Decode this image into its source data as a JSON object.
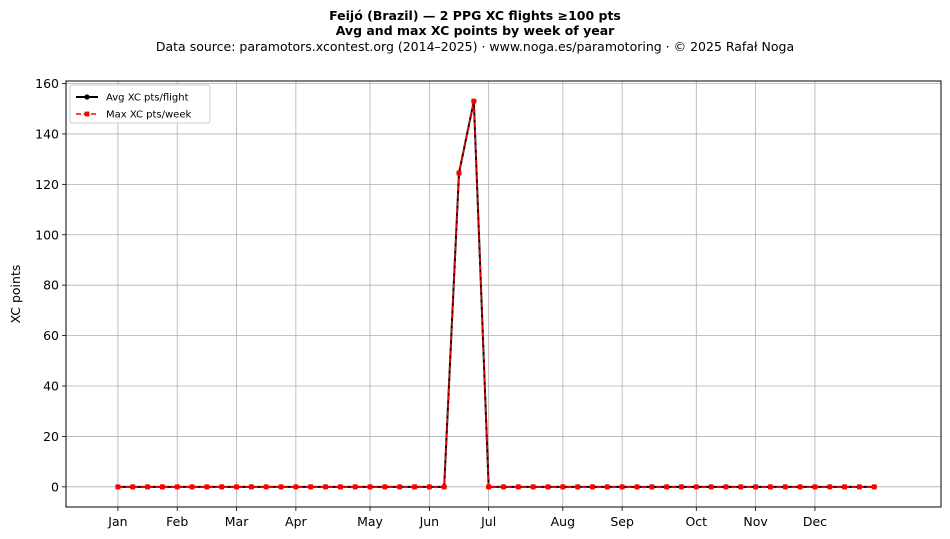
{
  "header": {
    "title_line1": "Feijó (Brazil)  —  2 PPG XC flights ≥100 pts",
    "title_line2": "Avg and max XC points by week of year",
    "subtitle": "Data source: paramotors.xcontest.org (2014–2025)  ·  www.noga.es/paramotoring  ·  © 2025 Rafał Noga"
  },
  "chart_data": {
    "type": "line",
    "title": "Avg and max XC points by week of year",
    "xlabel": "",
    "ylabel": "XC points",
    "xlim": [
      -2.5,
      56.5
    ],
    "ylim": [
      -8,
      161
    ],
    "yticks": [
      0,
      20,
      40,
      60,
      80,
      100,
      120,
      140,
      160
    ],
    "x_ticks": [
      {
        "week": 1,
        "label": "Jan"
      },
      {
        "week": 5,
        "label": "Feb"
      },
      {
        "week": 9,
        "label": "Mar"
      },
      {
        "week": 13,
        "label": "Apr"
      },
      {
        "week": 18,
        "label": "May"
      },
      {
        "week": 22,
        "label": "Jun"
      },
      {
        "week": 26,
        "label": "Jul"
      },
      {
        "week": 31,
        "label": "Aug"
      },
      {
        "week": 35,
        "label": "Sep"
      },
      {
        "week": 40,
        "label": "Oct"
      },
      {
        "week": 44,
        "label": "Nov"
      },
      {
        "week": 48,
        "label": "Dec"
      }
    ],
    "grid": true,
    "legend_position": "top-left",
    "x": [
      1,
      2,
      3,
      4,
      5,
      6,
      7,
      8,
      9,
      10,
      11,
      12,
      13,
      14,
      15,
      16,
      17,
      18,
      19,
      20,
      21,
      22,
      23,
      24,
      25,
      26,
      27,
      28,
      29,
      30,
      31,
      32,
      33,
      34,
      35,
      36,
      37,
      38,
      39,
      40,
      41,
      42,
      43,
      44,
      45,
      46,
      47,
      48,
      49,
      50,
      51,
      52
    ],
    "series": [
      {
        "name": "Avg XC pts/flight",
        "color": "#000000",
        "marker": "circle",
        "style": "solid",
        "values": [
          0,
          0,
          0,
          0,
          0,
          0,
          0,
          0,
          0,
          0,
          0,
          0,
          0,
          0,
          0,
          0,
          0,
          0,
          0,
          0,
          0,
          0,
          0,
          124.5,
          153,
          0,
          0,
          0,
          0,
          0,
          0,
          0,
          0,
          0,
          0,
          0,
          0,
          0,
          0,
          0,
          0,
          0,
          0,
          0,
          0,
          0,
          0,
          0,
          0,
          0,
          0,
          0
        ]
      },
      {
        "name": "Max XC pts/week",
        "color": "#ff0000",
        "marker": "square",
        "style": "dashed",
        "values": [
          0,
          0,
          0,
          0,
          0,
          0,
          0,
          0,
          0,
          0,
          0,
          0,
          0,
          0,
          0,
          0,
          0,
          0,
          0,
          0,
          0,
          0,
          0,
          124.5,
          153,
          0,
          0,
          0,
          0,
          0,
          0,
          0,
          0,
          0,
          0,
          0,
          0,
          0,
          0,
          0,
          0,
          0,
          0,
          0,
          0,
          0,
          0,
          0,
          0,
          0,
          0,
          0
        ]
      }
    ]
  }
}
